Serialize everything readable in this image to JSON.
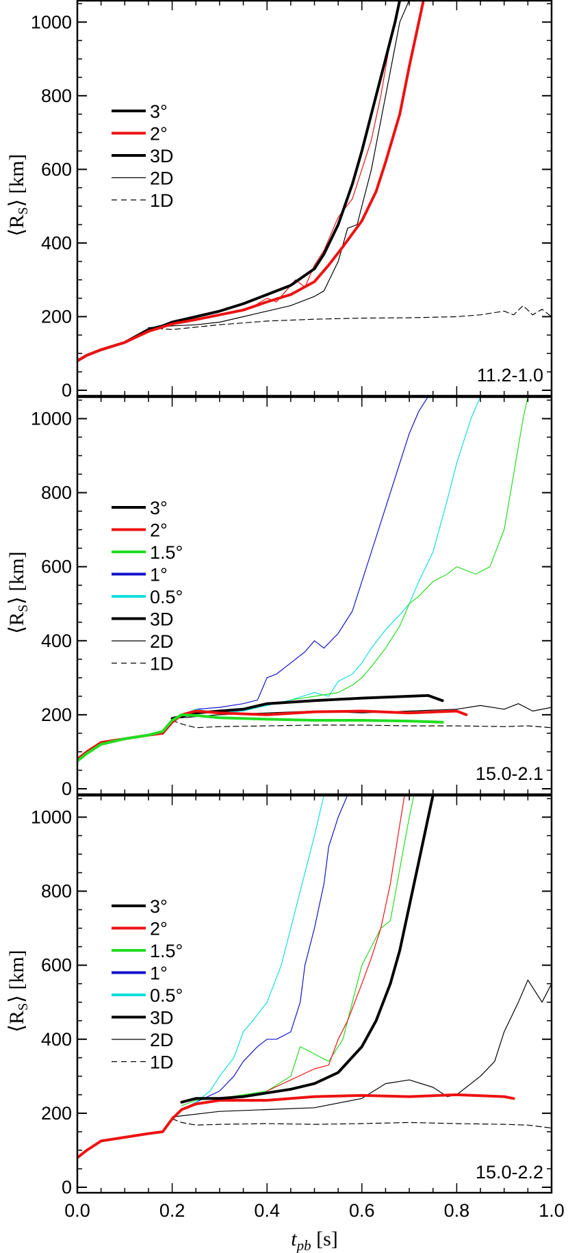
{
  "chart_data": [
    {
      "type": "line",
      "panel_label": "11.2-1.0",
      "ylabel": "⟨R_S⟩ [km]",
      "xlim": [
        0.0,
        1.0
      ],
      "ylim": [
        0,
        1060
      ],
      "yticks": [
        "0",
        "200",
        "400",
        "600",
        "800",
        "1000"
      ],
      "grid": false,
      "legend": [
        {
          "label": "3°",
          "color": "#000000",
          "width": 4,
          "dash": false
        },
        {
          "label": "2°",
          "color": "#ee1111",
          "width": 4,
          "dash": false
        },
        {
          "label": "3D",
          "color": "#000000",
          "width": 4,
          "dash": false
        },
        {
          "label": "2D",
          "color": "#000000",
          "width": 1.2,
          "dash": false
        },
        {
          "label": "1D",
          "color": "#000000",
          "width": 1.2,
          "dash": true
        }
      ],
      "series": [
        {
          "name": "1D",
          "color": "#000000",
          "width": 1.2,
          "dash": true,
          "x": [
            0.15,
            0.2,
            0.3,
            0.4,
            0.5,
            0.6,
            0.7,
            0.8,
            0.85,
            0.9,
            0.92,
            0.94,
            0.96,
            0.98,
            1.0
          ],
          "y": [
            170,
            165,
            178,
            188,
            193,
            196,
            197,
            200,
            205,
            215,
            205,
            230,
            205,
            220,
            200
          ]
        },
        {
          "name": "2D",
          "color": "#000000",
          "width": 1.2,
          "dash": false,
          "x": [
            0.15,
            0.2,
            0.25,
            0.3,
            0.35,
            0.4,
            0.45,
            0.48,
            0.5,
            0.52,
            0.55,
            0.57,
            0.59,
            0.6,
            0.62,
            0.65,
            0.68,
            0.7
          ],
          "y": [
            170,
            175,
            178,
            185,
            200,
            215,
            230,
            245,
            255,
            270,
            350,
            440,
            450,
            500,
            600,
            800,
            1000,
            1060
          ]
        },
        {
          "name": "3°",
          "color": "#000000",
          "width": 4,
          "dash": false,
          "x": [
            0.0,
            0.02,
            0.05,
            0.1,
            0.15,
            0.18,
            0.2,
            0.25,
            0.3,
            0.35,
            0.4,
            0.45,
            0.5,
            0.52,
            0.55,
            0.58,
            0.6,
            0.63,
            0.65,
            0.67,
            0.68
          ],
          "y": [
            80,
            95,
            110,
            130,
            165,
            175,
            185,
            200,
            215,
            235,
            260,
            285,
            330,
            370,
            450,
            560,
            650,
            800,
            900,
            1000,
            1060
          ]
        },
        {
          "name": "2°",
          "color": "#ee1111",
          "width": 4,
          "dash": false,
          "x": [
            0.0,
            0.02,
            0.05,
            0.1,
            0.15,
            0.18,
            0.2,
            0.25,
            0.3,
            0.35,
            0.4,
            0.45,
            0.5,
            0.53,
            0.56,
            0.6,
            0.63,
            0.65,
            0.68,
            0.7,
            0.72,
            0.73
          ],
          "y": [
            80,
            95,
            110,
            130,
            160,
            172,
            180,
            192,
            205,
            218,
            240,
            260,
            295,
            340,
            390,
            460,
            540,
            620,
            750,
            880,
            1000,
            1060
          ]
        },
        {
          "name": "2° (thin)",
          "color": "#ee1111",
          "width": 1.2,
          "dash": false,
          "x": [
            0.38,
            0.4,
            0.42,
            0.44,
            0.46,
            0.48,
            0.5,
            0.52,
            0.55,
            0.58,
            0.6,
            0.62,
            0.64,
            0.66,
            0.68
          ],
          "y": [
            235,
            250,
            240,
            270,
            300,
            280,
            340,
            380,
            470,
            520,
            600,
            680,
            800,
            950,
            1060
          ]
        }
      ]
    },
    {
      "type": "line",
      "panel_label": "15.0-2.1",
      "ylabel": "⟨R_S⟩ [km]",
      "xlim": [
        0.0,
        1.0
      ],
      "ylim": [
        0,
        1060
      ],
      "yticks": [
        "0",
        "200",
        "400",
        "600",
        "800",
        "1000"
      ],
      "grid": false,
      "legend": [
        {
          "label": "3°",
          "color": "#000000",
          "width": 4,
          "dash": false
        },
        {
          "label": "2°",
          "color": "#ee1111",
          "width": 4,
          "dash": false
        },
        {
          "label": "1.5°",
          "color": "#22dd22",
          "width": 4,
          "dash": false
        },
        {
          "label": "1°",
          "color": "#1111cc",
          "width": 4,
          "dash": false
        },
        {
          "label": "0.5°",
          "color": "#11dddd",
          "width": 4,
          "dash": false
        },
        {
          "label": "3D",
          "color": "#000000",
          "width": 4,
          "dash": false
        },
        {
          "label": "2D",
          "color": "#000000",
          "width": 1.2,
          "dash": false
        },
        {
          "label": "1D",
          "color": "#000000",
          "width": 1.2,
          "dash": true
        }
      ],
      "series": [
        {
          "name": "1D",
          "color": "#000000",
          "width": 1.2,
          "dash": true,
          "x": [
            0.2,
            0.22,
            0.25,
            0.3,
            0.4,
            0.5,
            0.6,
            0.7,
            0.8,
            0.9,
            0.95,
            1.0
          ],
          "y": [
            185,
            175,
            165,
            168,
            170,
            172,
            172,
            170,
            170,
            168,
            170,
            165
          ]
        },
        {
          "name": "2D",
          "color": "#000000",
          "width": 1.2,
          "dash": false,
          "x": [
            0.2,
            0.3,
            0.4,
            0.5,
            0.6,
            0.7,
            0.8,
            0.85,
            0.9,
            0.93,
            0.96,
            1.0
          ],
          "y": [
            190,
            200,
            205,
            210,
            205,
            210,
            215,
            225,
            215,
            230,
            210,
            220
          ]
        },
        {
          "name": "3D",
          "color": "#000000",
          "width": 4,
          "dash": false,
          "x": [
            0.2,
            0.25,
            0.3,
            0.35,
            0.4,
            0.5,
            0.6,
            0.7,
            0.74,
            0.77
          ],
          "y": [
            190,
            205,
            210,
            215,
            230,
            238,
            245,
            250,
            252,
            238
          ]
        },
        {
          "name": "2°",
          "color": "#ee1111",
          "width": 4,
          "dash": false,
          "x": [
            0.0,
            0.02,
            0.05,
            0.1,
            0.15,
            0.18,
            0.2,
            0.22,
            0.25,
            0.3,
            0.4,
            0.5,
            0.6,
            0.7,
            0.8,
            0.82
          ],
          "y": [
            80,
            100,
            125,
            135,
            145,
            150,
            180,
            200,
            210,
            205,
            200,
            208,
            210,
            205,
            210,
            200
          ]
        },
        {
          "name": "1.5°",
          "color": "#22dd22",
          "width": 4,
          "dash": false,
          "x": [
            0.0,
            0.02,
            0.05,
            0.1,
            0.15,
            0.18,
            0.2,
            0.22,
            0.25,
            0.3,
            0.4,
            0.5,
            0.6,
            0.7,
            0.77
          ],
          "y": [
            75,
            95,
            120,
            135,
            145,
            155,
            185,
            200,
            198,
            192,
            188,
            185,
            185,
            183,
            180
          ]
        },
        {
          "name": "1°",
          "color": "#1111cc",
          "width": 1.2,
          "dash": false,
          "x": [
            0.22,
            0.25,
            0.3,
            0.35,
            0.38,
            0.4,
            0.42,
            0.45,
            0.48,
            0.5,
            0.52,
            0.55,
            0.58,
            0.6,
            0.62,
            0.65,
            0.68,
            0.7,
            0.72,
            0.74
          ],
          "y": [
            200,
            215,
            220,
            230,
            240,
            300,
            310,
            340,
            370,
            400,
            380,
            420,
            480,
            560,
            640,
            760,
            880,
            960,
            1020,
            1060
          ]
        },
        {
          "name": "0.5°",
          "color": "#11dddd",
          "width": 1.2,
          "dash": false,
          "x": [
            0.22,
            0.25,
            0.3,
            0.35,
            0.4,
            0.45,
            0.5,
            0.53,
            0.55,
            0.58,
            0.6,
            0.62,
            0.65,
            0.68,
            0.7,
            0.72,
            0.75,
            0.78,
            0.8,
            0.83,
            0.85
          ],
          "y": [
            200,
            215,
            205,
            210,
            225,
            240,
            260,
            250,
            290,
            310,
            340,
            380,
            430,
            470,
            500,
            560,
            640,
            780,
            880,
            1000,
            1060
          ]
        },
        {
          "name": "1.5° (thin)",
          "color": "#22dd22",
          "width": 1.2,
          "dash": false,
          "x": [
            0.45,
            0.5,
            0.55,
            0.58,
            0.6,
            0.62,
            0.65,
            0.68,
            0.7,
            0.72,
            0.75,
            0.78,
            0.8,
            0.84,
            0.87,
            0.9,
            0.92,
            0.94,
            0.95
          ],
          "y": [
            240,
            250,
            260,
            280,
            300,
            330,
            380,
            440,
            500,
            520,
            560,
            580,
            600,
            580,
            600,
            700,
            850,
            1000,
            1060
          ]
        }
      ]
    },
    {
      "type": "line",
      "panel_label": "15.0-2.2",
      "ylabel": "⟨R_S⟩ [km]",
      "xlabel": "t_pb [s]",
      "xlim": [
        0.0,
        1.0
      ],
      "ylim": [
        0,
        1060
      ],
      "xticks": [
        "0.0",
        "0.2",
        "0.4",
        "0.6",
        "0.8",
        "1.0"
      ],
      "yticks": [
        "0",
        "200",
        "400",
        "600",
        "800",
        "1000"
      ],
      "grid": false,
      "legend": [
        {
          "label": "3°",
          "color": "#000000",
          "width": 4,
          "dash": false
        },
        {
          "label": "2°",
          "color": "#ee1111",
          "width": 4,
          "dash": false
        },
        {
          "label": "1.5°",
          "color": "#22dd22",
          "width": 4,
          "dash": false
        },
        {
          "label": "1°",
          "color": "#1111cc",
          "width": 4,
          "dash": false
        },
        {
          "label": "0.5°",
          "color": "#11dddd",
          "width": 4,
          "dash": false
        },
        {
          "label": "3D",
          "color": "#000000",
          "width": 4,
          "dash": false
        },
        {
          "label": "2D",
          "color": "#000000",
          "width": 1.2,
          "dash": false
        },
        {
          "label": "1D",
          "color": "#000000",
          "width": 1.2,
          "dash": true
        }
      ],
      "series": [
        {
          "name": "1D",
          "color": "#000000",
          "width": 1.2,
          "dash": true,
          "x": [
            0.2,
            0.22,
            0.25,
            0.3,
            0.4,
            0.5,
            0.6,
            0.7,
            0.8,
            0.9,
            0.95,
            1.0
          ],
          "y": [
            185,
            175,
            168,
            170,
            172,
            170,
            172,
            175,
            172,
            170,
            168,
            160
          ]
        },
        {
          "name": "2D",
          "color": "#000000",
          "width": 1.2,
          "dash": false,
          "x": [
            0.2,
            0.3,
            0.4,
            0.5,
            0.6,
            0.65,
            0.7,
            0.75,
            0.78,
            0.8,
            0.85,
            0.88,
            0.9,
            0.93,
            0.95,
            0.98,
            1.0
          ],
          "y": [
            190,
            205,
            210,
            215,
            240,
            280,
            290,
            270,
            245,
            250,
            300,
            340,
            420,
            500,
            560,
            500,
            550
          ]
        },
        {
          "name": "2°",
          "color": "#ee1111",
          "width": 4,
          "dash": false,
          "x": [
            0.0,
            0.02,
            0.05,
            0.1,
            0.15,
            0.18,
            0.2,
            0.22,
            0.25,
            0.3,
            0.4,
            0.5,
            0.6,
            0.7,
            0.8,
            0.9,
            0.92
          ],
          "y": [
            80,
            100,
            125,
            135,
            145,
            150,
            185,
            210,
            225,
            235,
            235,
            245,
            248,
            245,
            250,
            245,
            240
          ]
        },
        {
          "name": "3°",
          "color": "#000000",
          "width": 4,
          "dash": false,
          "x": [
            0.22,
            0.25,
            0.3,
            0.35,
            0.4,
            0.45,
            0.5,
            0.55,
            0.6,
            0.63,
            0.66,
            0.68,
            0.7,
            0.72,
            0.74,
            0.75
          ],
          "y": [
            230,
            240,
            240,
            245,
            255,
            265,
            280,
            310,
            380,
            450,
            550,
            640,
            760,
            880,
            1000,
            1060
          ]
        },
        {
          "name": "1.5°",
          "color": "#22dd22",
          "width": 1.2,
          "dash": false,
          "x": [
            0.22,
            0.25,
            0.3,
            0.35,
            0.4,
            0.45,
            0.47,
            0.5,
            0.53,
            0.56,
            0.58,
            0.6,
            0.62,
            0.64,
            0.66,
            0.68,
            0.7,
            0.71
          ],
          "y": [
            220,
            235,
            240,
            250,
            260,
            300,
            380,
            360,
            340,
            400,
            500,
            600,
            650,
            700,
            720,
            860,
            1000,
            1060
          ]
        },
        {
          "name": "2° (thin)",
          "color": "#ee1111",
          "width": 1.2,
          "dash": false,
          "x": [
            0.4,
            0.45,
            0.5,
            0.53,
            0.55,
            0.57,
            0.6,
            0.62,
            0.64,
            0.66,
            0.68,
            0.69
          ],
          "y": [
            260,
            290,
            320,
            330,
            400,
            450,
            550,
            620,
            700,
            820,
            980,
            1060
          ]
        },
        {
          "name": "1°",
          "color": "#1111cc",
          "width": 1.2,
          "dash": false,
          "x": [
            0.22,
            0.25,
            0.3,
            0.33,
            0.35,
            0.38,
            0.4,
            0.42,
            0.45,
            0.47,
            0.48,
            0.5,
            0.52,
            0.53,
            0.55,
            0.57
          ],
          "y": [
            210,
            230,
            260,
            300,
            340,
            380,
            400,
            400,
            420,
            500,
            600,
            700,
            820,
            920,
            1000,
            1060
          ]
        },
        {
          "name": "0.5°",
          "color": "#11dddd",
          "width": 1.2,
          "dash": false,
          "x": [
            0.22,
            0.25,
            0.28,
            0.3,
            0.33,
            0.35,
            0.37,
            0.4,
            0.43,
            0.45,
            0.47,
            0.5,
            0.52
          ],
          "y": [
            210,
            230,
            260,
            300,
            350,
            420,
            450,
            500,
            600,
            700,
            800,
            950,
            1060
          ]
        }
      ]
    }
  ]
}
